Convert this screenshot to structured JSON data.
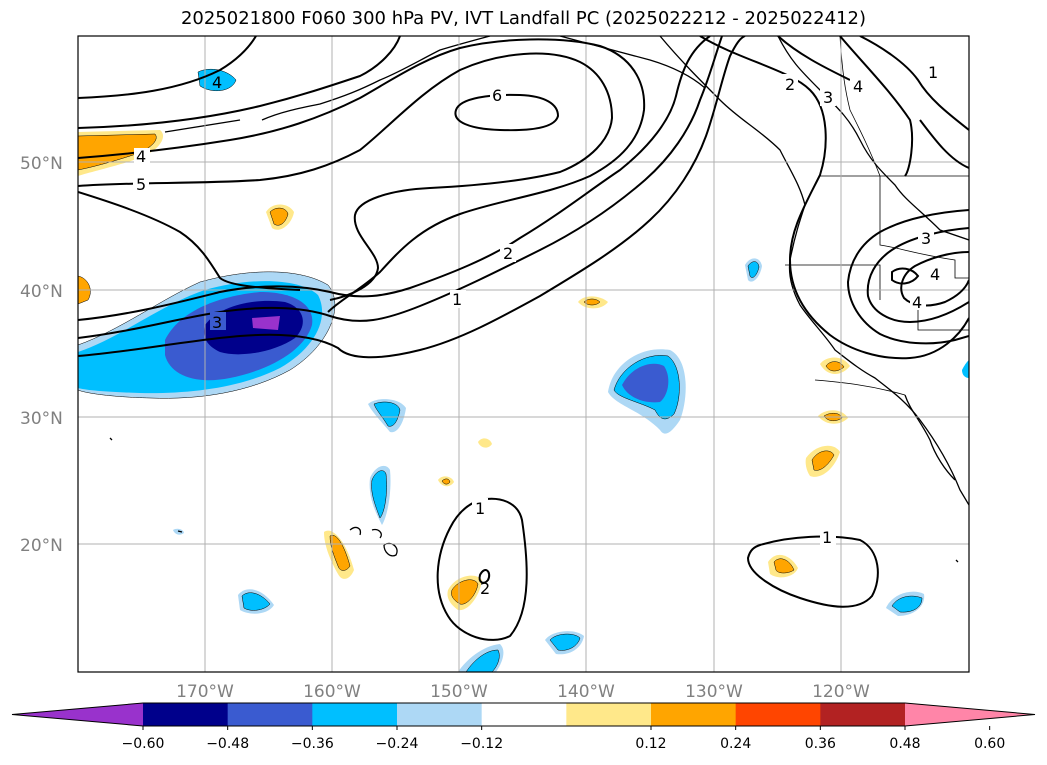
{
  "title": "2025021800 F060 300 hPa PV, IVT Landfall PC (2025022212 - 2025022412)",
  "map": {
    "lon_labels": [
      "170°W",
      "160°W",
      "150°W",
      "140°W",
      "130°W",
      "120°W"
    ],
    "lat_labels": [
      "50°N",
      "40°N",
      "30°N",
      "20°N"
    ],
    "contour_labels": [
      "6",
      "5",
      "4",
      "4",
      "3",
      "3",
      "3",
      "2",
      "2",
      "2",
      "1",
      "1",
      "1",
      "1",
      "4",
      "4",
      "4"
    ]
  },
  "colorbar": {
    "ticks": [
      "−0.60",
      "−0.48",
      "−0.36",
      "−0.24",
      "−0.12",
      "0.12",
      "0.24",
      "0.36",
      "0.48",
      "0.60"
    ],
    "colors": [
      "#9932cc",
      "#00008b",
      "#3a5bd0",
      "#00bfff",
      "#add8f5",
      "#ffffff",
      "#ffe88a",
      "#ffa500",
      "#ff4500",
      "#b22222",
      "#ff85a8"
    ]
  }
}
